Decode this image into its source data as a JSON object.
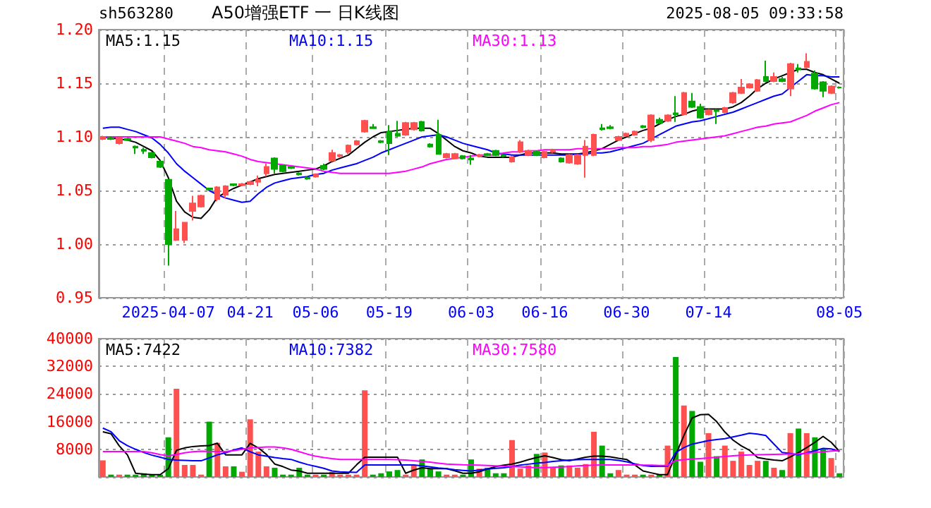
{
  "chart_data": [
    {
      "type": "candlestick",
      "title": "A50增强ETF 一 日K线图",
      "subtitle": "sh563280",
      "annotations": [
        "2025-08-05 09:33:58"
      ],
      "categories": [
        null,
        null,
        null,
        null,
        null,
        null,
        null,
        null,
        "2025-04-07",
        null,
        null,
        null,
        null,
        null,
        null,
        null,
        null,
        null,
        "04-21",
        null,
        null,
        null,
        null,
        null,
        null,
        null,
        "05-06",
        null,
        null,
        null,
        null,
        null,
        null,
        null,
        null,
        "05-19",
        null,
        null,
        null,
        null,
        null,
        null,
        null,
        null,
        null,
        "06-03",
        null,
        null,
        null,
        null,
        null,
        null,
        null,
        null,
        "06-16",
        null,
        null,
        null,
        null,
        null,
        null,
        null,
        null,
        null,
        "06-30",
        null,
        null,
        null,
        null,
        null,
        null,
        null,
        null,
        null,
        "07-14",
        null,
        null,
        null,
        null,
        null,
        null,
        null,
        null,
        null,
        null,
        null,
        null,
        null,
        null,
        null,
        "08-05"
      ],
      "ylim": [
        0.95,
        1.2
      ],
      "yticks": [
        0.95,
        {
          "value": 1,
          "label": "1.00"
        },
        1.05,
        {
          "value": 1.1,
          "label": "1.10"
        },
        1.15,
        {
          "value": 1.2,
          "label": "1.20"
        }
      ],
      "grid": true,
      "legend": "top",
      "marker": "none",
      "series": [
        {
          "ohlc": [
            [
              1.098,
              1.101,
              1.097,
              1.1
            ],
            [
              1.099,
              1.1,
              1.097,
              1.098
            ],
            [
              1.094,
              1.1,
              1.093,
              1.099
            ],
            [
              1.098,
              1.099,
              1.096,
              1.097
            ],
            [
              1.091,
              1.092,
              1.084,
              1.09
            ],
            [
              1.088,
              1.09,
              1.084,
              1.087
            ],
            [
              1.085,
              1.086,
              1.08,
              1.081
            ],
            [
              1.077,
              1.078,
              1.071,
              1.072
            ],
            [
              1.06,
              1.06,
              0.98,
              1
            ],
            [
              1.004,
              1.031,
              1.003,
              1.014
            ],
            [
              1.004,
              1.02,
              1.001,
              1.02
            ],
            [
              1.031,
              1.045,
              1.022,
              1.038
            ],
            [
              1.035,
              1.046,
              1.034,
              1.045
            ],
            [
              1.052,
              1.052,
              1.05,
              1.051
            ],
            [
              1.042,
              1.054,
              1.04,
              1.053
            ],
            [
              1.046,
              1.055,
              1.043,
              1.054
            ],
            [
              1.056,
              1.056,
              1.054,
              1.055
            ],
            [
              1.055,
              1.057,
              1.054,
              1.056
            ],
            [
              1.056,
              1.059,
              1.055,
              1.058
            ],
            [
              1.058,
              1.064,
              1.054,
              1.06
            ],
            [
              1.066,
              1.075,
              1.063,
              1.072
            ],
            [
              1.08,
              1.081,
              1.066,
              1.07
            ],
            [
              1.073,
              1.074,
              1.067,
              1.068
            ],
            [
              1.072,
              1.073,
              1.07,
              1.071
            ],
            [
              1.066,
              1.067,
              1.064,
              1.065
            ],
            [
              1.062,
              1.063,
              1.06,
              1.061
            ],
            [
              1.063,
              1.066,
              1.062,
              1.065
            ],
            [
              1.073,
              1.075,
              1.069,
              1.07
            ],
            [
              1.078,
              1.088,
              1.077,
              1.085
            ],
            [
              1.082,
              1.084,
              1.081,
              1.083
            ],
            [
              1.086,
              1.093,
              1.084,
              1.092
            ],
            [
              1.093,
              1.097,
              1.092,
              1.096
            ],
            [
              1.105,
              1.116,
              1.104,
              1.115
            ],
            [
              1.109,
              1.112,
              1.108,
              1.108
            ],
            [
              1.096,
              1.097,
              1.094,
              1.095
            ],
            [
              1.105,
              1.111,
              1.083,
              1.094
            ],
            [
              1.103,
              1.115,
              1.1,
              1.101
            ],
            [
              1.102,
              1.114,
              1.101,
              1.113
            ],
            [
              1.107,
              1.114,
              1.106,
              1.113
            ],
            [
              1.114,
              1.115,
              1.105,
              1.106
            ],
            [
              1.093,
              1.094,
              1.09,
              1.091
            ],
            [
              1.102,
              1.116,
              1.084,
              1.084
            ],
            [
              1.081,
              1.085,
              1.08,
              1.084
            ],
            [
              1.08,
              1.085,
              1.079,
              1.084
            ],
            [
              1.082,
              1.083,
              1.079,
              1.08
            ],
            [
              1.08,
              1.083,
              1.074,
              1.079
            ],
            [
              1.082,
              1.084,
              1.081,
              1.083
            ],
            [
              1.084,
              1.085,
              1.082,
              1.083
            ],
            [
              1.087,
              1.088,
              1.082,
              1.083
            ],
            [
              1.083,
              1.084,
              1.081,
              1.082
            ],
            [
              1.077,
              1.082,
              1.076,
              1.081
            ],
            [
              1.086,
              1.097,
              1.085,
              1.095
            ],
            [
              1.083,
              1.088,
              1.082,
              1.087
            ],
            [
              1.086,
              1.087,
              1.082,
              1.083
            ],
            [
              1.081,
              1.087,
              1.08,
              1.086
            ],
            [
              1.086,
              1.089,
              1.085,
              1.088
            ],
            [
              1.08,
              1.081,
              1.076,
              1.077
            ],
            [
              1.076,
              1.084,
              1.075,
              1.083
            ],
            [
              1.075,
              1.084,
              1.074,
              1.083
            ],
            [
              1.083,
              1.097,
              1.062,
              1.091
            ],
            [
              1.083,
              1.103,
              1.082,
              1.102
            ],
            [
              1.108,
              1.112,
              1.106,
              1.107
            ],
            [
              1.109,
              1.111,
              1.107,
              1.108
            ],
            [
              1.097,
              1.101,
              1.096,
              1.1
            ],
            [
              1.101,
              1.104,
              1.1,
              1.103
            ],
            [
              1.102,
              1.106,
              1.101,
              1.105
            ],
            [
              1.11,
              1.111,
              1.108,
              1.109
            ],
            [
              1.097,
              1.121,
              1.095,
              1.12
            ],
            [
              1.116,
              1.118,
              1.112,
              1.113
            ],
            [
              1.115,
              1.121,
              1.114,
              1.12
            ],
            [
              1.122,
              1.138,
              1.114,
              1.121
            ],
            [
              1.121,
              1.142,
              1.12,
              1.141
            ],
            [
              1.133,
              1.141,
              1.127,
              1.128
            ],
            [
              1.128,
              1.131,
              1.117,
              1.118
            ],
            [
              1.121,
              1.126,
              1.12,
              1.125
            ],
            [
              1.125,
              1.126,
              1.112,
              1.124
            ],
            [
              1.123,
              1.128,
              1.122,
              1.127
            ],
            [
              1.132,
              1.142,
              1.131,
              1.141
            ],
            [
              1.141,
              1.154,
              1.14,
              1.146
            ],
            [
              1.146,
              1.15,
              1.145,
              1.149
            ],
            [
              1.143,
              1.154,
              1.142,
              1.153
            ],
            [
              1.156,
              1.171,
              1.151,
              1.152
            ],
            [
              1.152,
              1.16,
              1.151,
              1.156
            ],
            [
              1.154,
              1.156,
              1.151,
              1.152
            ],
            [
              1.145,
              1.169,
              1.138,
              1.168
            ],
            [
              1.164,
              1.168,
              1.16,
              1.163
            ],
            [
              1.165,
              1.178,
              1.164,
              1.17
            ],
            [
              1.159,
              1.162,
              1.144,
              1.145
            ],
            [
              1.151,
              1.152,
              1.137,
              1.143
            ],
            [
              1.141,
              1.148,
              1.14,
              1.147
            ],
            [
              1.146,
              1.147,
              1.145,
              1.146
            ]
          ],
          "colors": [
            "#ff5050",
            "#00a800",
            "#ff5050",
            "#00a800",
            "#00a800",
            "#00a800",
            "#00a800",
            "#00a800",
            "#00a800",
            "#ff5050",
            "#ff5050",
            "#ff5050",
            "#ff5050",
            "#00a800",
            "#ff5050",
            "#ff5050",
            "#00a800",
            "#ff5050",
            "#ff5050",
            "#ff5050",
            "#ff5050",
            "#00a800",
            "#00a800",
            "#00a800",
            "#00a800",
            "#00a800",
            "#ff5050",
            "#00a800",
            "#ff5050",
            "#ff5050",
            "#ff5050",
            "#ff5050",
            "#ff5050",
            "#00a800",
            "#00a800",
            "#00a800",
            "#00a800",
            "#ff5050",
            "#ff5050",
            "#00a800",
            "#00a800",
            "#00a800",
            "#ff5050",
            "#ff5050",
            "#00a800",
            "#00a800",
            "#ff5050",
            "#00a800",
            "#00a800",
            "#00a800",
            "#ff5050",
            "#ff5050",
            "#ff5050",
            "#00a800",
            "#ff5050",
            "#ff5050",
            "#00a800",
            "#ff5050",
            "#ff5050",
            "#ff5050",
            "#ff5050",
            "#00a800",
            "#00a800",
            "#ff5050",
            "#ff5050",
            "#ff5050",
            "#00a800",
            "#ff5050",
            "#00a800",
            "#ff5050",
            "#00a800",
            "#ff5050",
            "#00a800",
            "#00a800",
            "#ff5050",
            "#00a800",
            "#ff5050",
            "#ff5050",
            "#ff5050",
            "#ff5050",
            "#ff5050",
            "#00a800",
            "#ff5050",
            "#00a800",
            "#ff5050",
            "#00a800",
            "#ff5050",
            "#00a800",
            "#00a800",
            "#ff5050",
            "#00a800"
          ]
        },
        {
          "type": "line",
          "name": "MA5:1.15",
          "color": "#000000",
          "values": [
            1.1,
            1.099,
            1.098,
            1.097,
            1.095,
            1.091,
            1.087,
            1.078,
            1.062,
            1.04,
            1.03,
            1.025,
            1.024,
            1.032,
            1.044,
            1.048,
            1.052,
            1.055,
            1.058,
            1.061,
            1.063,
            1.065,
            1.066,
            1.067,
            1.068,
            1.069,
            1.07,
            1.073,
            1.077,
            1.08,
            1.083,
            1.089,
            1.095,
            1.1,
            1.104,
            1.105,
            1.106,
            1.107,
            1.108,
            1.108,
            1.108,
            1.103,
            1.097,
            1.091,
            1.087,
            1.085,
            1.082,
            1.081,
            1.081,
            1.081,
            1.081,
            1.083,
            1.085,
            1.085,
            1.085,
            1.085,
            1.084,
            1.084,
            1.084,
            1.085,
            1.087,
            1.089,
            1.093,
            1.097,
            1.1,
            1.103,
            1.106,
            1.108,
            1.112,
            1.116,
            1.119,
            1.121,
            1.124,
            1.126,
            1.126,
            1.126,
            1.126,
            1.128,
            1.132,
            1.138,
            1.145,
            1.15,
            1.154,
            1.157,
            1.16,
            1.163,
            1.163,
            1.16,
            1.158,
            1.154,
            1.15
          ]
        },
        {
          "type": "line",
          "name": "MA10:1.15",
          "color": "#0000ff",
          "values": [
            1.108,
            1.109,
            1.109,
            1.107,
            1.105,
            1.102,
            1.099,
            1.093,
            1.085,
            1.075,
            1.068,
            1.062,
            1.056,
            1.05,
            1.046,
            1.043,
            1.041,
            1.039,
            1.04,
            1.047,
            1.053,
            1.057,
            1.059,
            1.061,
            1.062,
            1.063,
            1.065,
            1.066,
            1.069,
            1.071,
            1.073,
            1.075,
            1.078,
            1.081,
            1.085,
            1.088,
            1.091,
            1.094,
            1.097,
            1.1,
            1.101,
            1.102,
            1.1,
            1.097,
            1.094,
            1.092,
            1.09,
            1.088,
            1.085,
            1.084,
            1.083,
            1.083,
            1.083,
            1.083,
            1.083,
            1.083,
            1.083,
            1.083,
            1.084,
            1.084,
            1.085,
            1.085,
            1.086,
            1.088,
            1.09,
            1.092,
            1.094,
            1.098,
            1.102,
            1.106,
            1.11,
            1.112,
            1.114,
            1.115,
            1.117,
            1.119,
            1.121,
            1.123,
            1.126,
            1.129,
            1.132,
            1.135,
            1.138,
            1.14,
            1.146,
            1.152,
            1.158,
            1.157,
            1.157,
            1.156,
            1.156
          ]
        },
        {
          "type": "line",
          "name": "MA30:1.13",
          "color": "#ff00ff",
          "values": [
            1.1,
            1.1,
            1.1,
            1.1,
            1.1,
            1.1,
            1.1,
            1.1,
            1.098,
            1.096,
            1.094,
            1.091,
            1.09,
            1.088,
            1.087,
            1.086,
            1.084,
            1.082,
            1.079,
            1.077,
            1.076,
            1.075,
            1.074,
            1.073,
            1.072,
            1.071,
            1.07,
            1.068,
            1.067,
            1.066,
            1.066,
            1.066,
            1.066,
            1.066,
            1.066,
            1.066,
            1.067,
            1.068,
            1.07,
            1.072,
            1.075,
            1.077,
            1.079,
            1.08,
            1.081,
            1.082,
            1.083,
            1.083,
            1.083,
            1.085,
            1.086,
            1.086,
            1.087,
            1.087,
            1.088,
            1.088,
            1.088,
            1.088,
            1.089,
            1.089,
            1.089,
            1.089,
            1.089,
            1.09,
            1.09,
            1.09,
            1.091,
            1.091,
            1.092,
            1.093,
            1.095,
            1.096,
            1.097,
            1.098,
            1.099,
            1.1,
            1.101,
            1.103,
            1.105,
            1.107,
            1.109,
            1.11,
            1.112,
            1.113,
            1.114,
            1.117,
            1.12,
            1.124,
            1.127,
            1.13,
            1.132
          ]
        }
      ]
    },
    {
      "type": "bar",
      "tick_labels": "y",
      "categories": [
        null,
        null,
        null,
        null,
        null,
        null,
        null,
        null,
        null,
        null,
        null,
        null,
        null,
        null,
        null,
        null,
        null,
        null,
        null,
        null,
        null,
        null,
        null,
        null,
        null,
        null,
        null,
        null,
        null,
        null,
        null,
        null,
        null,
        null,
        null,
        null,
        null,
        null,
        null,
        null,
        null,
        null,
        null,
        null,
        null,
        null,
        null,
        null,
        null,
        null,
        null,
        null,
        null,
        null,
        null,
        null,
        null,
        null,
        null,
        null,
        null,
        null,
        null,
        null,
        null,
        null,
        null,
        null,
        null,
        null,
        null,
        null,
        null,
        null,
        null,
        null,
        null,
        null,
        null,
        null,
        null,
        null,
        null,
        null,
        null,
        null,
        null,
        null,
        null,
        null,
        null
      ],
      "ylim": [
        0,
        40000
      ],
      "yticks": [
        {
          "value": 0,
          "label": null
        },
        8000,
        16000,
        24000,
        32000,
        40000
      ],
      "grid": true,
      "legend": "top",
      "marker": "none",
      "series": [
        {
          "values": [
            4800,
            670,
            670,
            670,
            670,
            1070,
            670,
            670,
            11470,
            25500,
            3470,
            3470,
            670,
            16000,
            9870,
            3070,
            3070,
            1500,
            16670,
            7330,
            3070,
            2670,
            670,
            670,
            2670,
            670,
            670,
            670,
            1470,
            670,
            670,
            670,
            25060,
            670,
            1070,
            1600,
            2000,
            670,
            3470,
            5070,
            2400,
            1600,
            670,
            670,
            670,
            5070,
            2400,
            2670,
            1070,
            1070,
            10670,
            2400,
            3330,
            6670,
            7070,
            2670,
            3330,
            3330,
            2670,
            3730,
            13070,
            9070,
            1070,
            2000,
            670,
            670,
            670,
            670,
            670,
            9070,
            34670,
            20670,
            19070,
            4400,
            12670,
            6000,
            9070,
            4670,
            7330,
            3470,
            4670,
            4670,
            2670,
            2000,
            12670,
            14000,
            12670,
            11470,
            8130,
            5470,
            1070
          ],
          "colors": [
            "#ff5050",
            "#00a800",
            "#ff5050",
            "#00a800",
            "#00a800",
            "#00a800",
            "#00a800",
            "#00a800",
            "#00a800",
            "#ff5050",
            "#ff5050",
            "#ff5050",
            "#ff5050",
            "#00a800",
            "#ff5050",
            "#ff5050",
            "#00a800",
            "#ff5050",
            "#ff5050",
            "#ff5050",
            "#ff5050",
            "#00a800",
            "#00a800",
            "#00a800",
            "#00a800",
            "#00a800",
            "#ff5050",
            "#00a800",
            "#ff5050",
            "#ff5050",
            "#ff5050",
            "#ff5050",
            "#ff5050",
            "#00a800",
            "#00a800",
            "#00a800",
            "#00a800",
            "#ff5050",
            "#ff5050",
            "#00a800",
            "#00a800",
            "#00a800",
            "#ff5050",
            "#ff5050",
            "#00a800",
            "#00a800",
            "#ff5050",
            "#00a800",
            "#00a800",
            "#00a800",
            "#ff5050",
            "#ff5050",
            "#ff5050",
            "#00a800",
            "#ff5050",
            "#ff5050",
            "#00a800",
            "#ff5050",
            "#ff5050",
            "#ff5050",
            "#ff5050",
            "#00a800",
            "#00a800",
            "#ff5050",
            "#ff5050",
            "#ff5050",
            "#00a800",
            "#ff5050",
            "#00a800",
            "#ff5050",
            "#00a800",
            "#ff5050",
            "#00a800",
            "#00a800",
            "#ff5050",
            "#00a800",
            "#ff5050",
            "#ff5050",
            "#ff5050",
            "#ff5050",
            "#ff5050",
            "#00a800",
            "#ff5050",
            "#00a800",
            "#ff5050",
            "#00a800",
            "#ff5050",
            "#00a800",
            "#00a800",
            "#ff5050",
            "#00a800"
          ]
        },
        {
          "type": "line",
          "name": "MA5:7422",
          "color": "#000000",
          "values": [
            13070,
            12500,
            9000,
            6400,
            1070,
            800,
            670,
            670,
            2400,
            7700,
            8400,
            8800,
            9000,
            9070,
            9730,
            6400,
            6400,
            6400,
            9730,
            8400,
            6500,
            3730,
            3000,
            2000,
            1730,
            1070,
            1070,
            1070,
            1070,
            1070,
            1070,
            3500,
            5730,
            5730,
            5730,
            5730,
            5730,
            1070,
            2000,
            2670,
            2400,
            2400,
            2400,
            1800,
            1070,
            1070,
            1500,
            2300,
            3000,
            3400,
            3730,
            4300,
            5000,
            5600,
            6130,
            5600,
            5000,
            4670,
            5200,
            5700,
            6000,
            6000,
            5800,
            5400,
            5070,
            3500,
            1730,
            1200,
            670,
            670,
            6400,
            12000,
            17070,
            18000,
            18130,
            16000,
            13000,
            10670,
            9000,
            7730,
            5600,
            5200,
            4900,
            4670,
            5800,
            7070,
            8500,
            10000,
            11730,
            10000,
            7400
          ]
        },
        {
          "type": "line",
          "name": "MA10:7382",
          "color": "#0000ff",
          "values": [
            14130,
            13070,
            10500,
            9070,
            8000,
            7070,
            6300,
            5700,
            5070,
            4900,
            4800,
            4700,
            4670,
            5500,
            6400,
            7000,
            7800,
            8400,
            7300,
            6400,
            6000,
            5600,
            5300,
            5070,
            4300,
            3600,
            3070,
            2500,
            1730,
            1500,
            1400,
            1330,
            3470,
            3470,
            3470,
            3470,
            3470,
            3470,
            3470,
            3200,
            2900,
            2600,
            2400,
            2100,
            1900,
            1730,
            2000,
            2300,
            2500,
            2670,
            3000,
            3400,
            3700,
            4000,
            4200,
            4500,
            4700,
            4900,
            5000,
            5070,
            5070,
            5070,
            5070,
            4800,
            4400,
            3800,
            3300,
            3070,
            3070,
            3070,
            7070,
            8500,
            9500,
            10000,
            10500,
            10800,
            11070,
            11600,
            12100,
            12670,
            12400,
            12000,
            9500,
            7070,
            6800,
            6400,
            7000,
            7600,
            8270,
            8100,
            7400
          ]
        },
        {
          "type": "line",
          "name": "MA30:7580",
          "color": "#ff00ff",
          "values": [
            7330,
            7330,
            7330,
            7330,
            7330,
            7330,
            7000,
            6500,
            6130,
            6500,
            7000,
            7300,
            7470,
            7400,
            7330,
            7330,
            7600,
            8000,
            8400,
            8500,
            8670,
            8670,
            8400,
            8000,
            7300,
            6600,
            6000,
            5600,
            5300,
            5070,
            5070,
            5070,
            5070,
            5070,
            5070,
            5070,
            5000,
            4900,
            4670,
            4500,
            4300,
            4000,
            3730,
            3600,
            3500,
            3470,
            3400,
            3330,
            3200,
            3100,
            3000,
            2900,
            2800,
            2670,
            2700,
            2800,
            2900,
            3000,
            3200,
            3330,
            3400,
            3470,
            3470,
            3470,
            3470,
            3470,
            3400,
            3400,
            3330,
            3330,
            4800,
            5000,
            5200,
            5330,
            5500,
            5700,
            5900,
            6100,
            6300,
            6400,
            6450,
            6500,
            6550,
            6600,
            6650,
            6670,
            6900,
            7100,
            7300,
            7500,
            7600
          ]
        }
      ]
    }
  ]
}
